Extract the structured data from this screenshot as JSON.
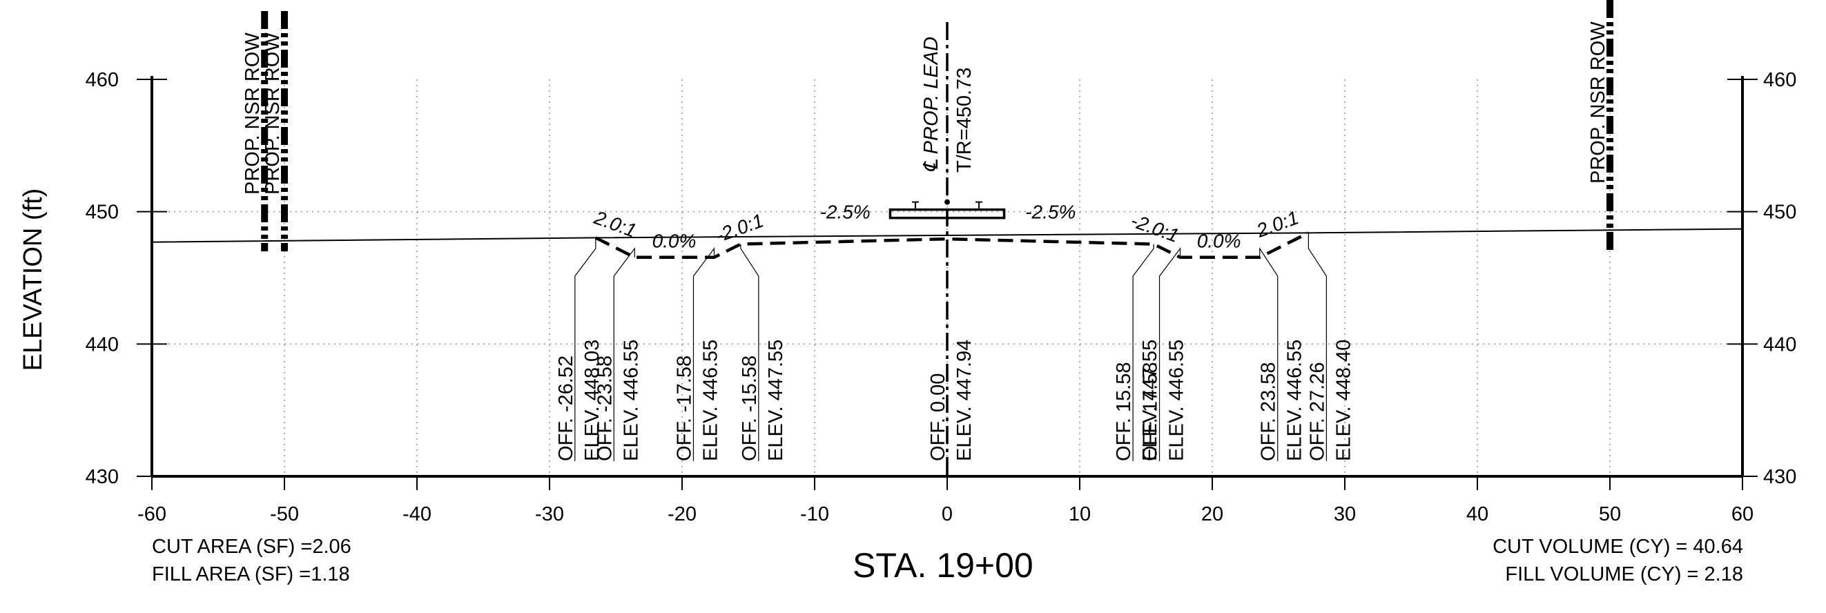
{
  "chart_data": {
    "type": "cross-section",
    "ylabel": "ELEVATION (ft)",
    "xlim": [
      -60,
      60
    ],
    "ylim": [
      430,
      460
    ],
    "x_ticks": [
      "-60",
      "-50",
      "-40",
      "-30",
      "-20",
      "-10",
      "0",
      "10",
      "20",
      "30",
      "40",
      "50",
      "60"
    ],
    "y_ticks": [
      "430",
      "440",
      "450",
      "460"
    ],
    "grid": true,
    "existing_ground": [
      [
        -60,
        447.7
      ],
      [
        -26.52,
        448.03
      ],
      [
        27.26,
        448.4
      ],
      [
        60,
        448.7
      ]
    ],
    "proposed_section": [
      [
        -26.52,
        448.03
      ],
      [
        -23.58,
        446.55
      ],
      [
        -17.58,
        446.55
      ],
      [
        -15.58,
        447.55
      ],
      [
        0.0,
        447.94
      ],
      [
        15.58,
        447.55
      ],
      [
        17.58,
        446.55
      ],
      [
        23.58,
        446.55
      ],
      [
        27.26,
        448.4
      ]
    ],
    "offset_labels": [
      {
        "off": "-26.52",
        "elev": "448.03",
        "x": -26.52
      },
      {
        "off": "-23.58",
        "elev": "446.55",
        "x": -23.58
      },
      {
        "off": "-17.58",
        "elev": "446.55",
        "x": -17.58
      },
      {
        "off": "-15.58",
        "elev": "447.55",
        "x": -15.58
      },
      {
        "off": "0.00",
        "elev": "447.94",
        "x": 0.0
      },
      {
        "off": "15.58",
        "elev": "447.55",
        "x": 15.58
      },
      {
        "off": "17.58",
        "elev": "446.55",
        "x": 17.58
      },
      {
        "off": "23.58",
        "elev": "446.55",
        "x": 23.58
      },
      {
        "off": "27.26",
        "elev": "448.40",
        "x": 27.26
      }
    ],
    "off_prefix": "OFF.",
    "elev_prefix": "ELEV.",
    "slope_labels": [
      {
        "text": "2.0:1",
        "x": -25.2,
        "y": 448.6,
        "angle": 20
      },
      {
        "text": "0.0%",
        "x": -20.6,
        "y": 447.3,
        "angle": 0
      },
      {
        "text": "-2.0:1",
        "x": -15.5,
        "y": 448.3,
        "angle": -20
      },
      {
        "text": "-2.5%",
        "x": -7.7,
        "y": 449.5,
        "angle": 0
      },
      {
        "text": "-2.5%",
        "x": 7.8,
        "y": 449.5,
        "angle": 0
      },
      {
        "text": "-2.0:1",
        "x": 15.5,
        "y": 448.3,
        "angle": 20
      },
      {
        "text": "0.0%",
        "x": 20.5,
        "y": 447.3,
        "angle": 0
      },
      {
        "text": "2.0:1",
        "x": 25.1,
        "y": 448.6,
        "angle": -20
      }
    ],
    "row_lines": [
      {
        "label": "PROP. NSR ROW",
        "x": -51.5
      },
      {
        "label": "PROP. NSR ROW",
        "x": -50.0
      },
      {
        "label": "PROP. NSR ROW",
        "x": 50.0
      }
    ],
    "centerline_label": "℄ PROP. LEAD",
    "tr_label": "T/R=450.73",
    "rail_elevation": 450.0,
    "rail_half_width": 4.3
  },
  "summary": {
    "cut_area": "CUT AREA (SF) =2.06",
    "fill_area": "FILL AREA (SF) =1.18",
    "cut_volume": "CUT VOLUME (CY) =  40.64",
    "fill_volume": "FILL VOLUME (CY) =  2.18",
    "station": "STA. 19+00"
  }
}
